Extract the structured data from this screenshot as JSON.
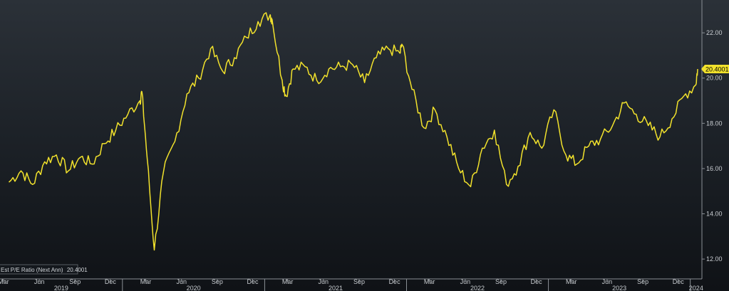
{
  "chart_data": {
    "type": "line",
    "title": "",
    "xlabel": "",
    "ylabel": "",
    "ylim": [
      11.5,
      23.2
    ],
    "y_ticks": [
      "12.00",
      "14.00",
      "16.00",
      "18.00",
      "20.00",
      "22.00"
    ],
    "y_tick_values": [
      12,
      14,
      16,
      18,
      20,
      22
    ],
    "month_ticks": [
      "Mar",
      "Jun",
      "Sep",
      "Dec",
      "Mar",
      "Jun",
      "Sep",
      "Dec",
      "Mar",
      "Jun",
      "Sep",
      "Dec",
      "Mar",
      "Jun",
      "Sep",
      "Dec",
      "Mar",
      "Jun",
      "Sep",
      "Dec"
    ],
    "year_labels": [
      "2019",
      "2020",
      "2021",
      "2022",
      "2023",
      "2024"
    ],
    "grid": false,
    "legend": "bottom-left",
    "series": [
      {
        "name": "Est P/E Ratio (Next Ann)",
        "last_value_label": "20.4001",
        "color": "#f2e22c",
        "x": [
          "2019-03",
          "2019-04",
          "2019-05",
          "2019-06",
          "2019-07",
          "2019-08",
          "2019-09",
          "2019-10",
          "2019-11",
          "2019-12",
          "2020-01",
          "2020-02",
          "2020-02-20",
          "2020-03-05",
          "2020-03-23",
          "2020-04",
          "2020-05",
          "2020-06",
          "2020-07",
          "2020-08",
          "2020-09",
          "2020-10",
          "2020-11",
          "2020-12",
          "2021-01",
          "2021-01-20",
          "2021-02",
          "2021-02-25",
          "2021-03",
          "2021-04",
          "2021-05",
          "2021-06",
          "2021-07",
          "2021-08",
          "2021-09",
          "2021-10",
          "2021-11",
          "2021-12",
          "2021-12-20",
          "2022-01",
          "2022-02",
          "2022-03",
          "2022-04",
          "2022-05",
          "2022-06",
          "2022-07",
          "2022-08",
          "2022-09",
          "2022-10",
          "2022-11",
          "2022-12",
          "2023-01",
          "2023-02",
          "2023-03",
          "2023-04",
          "2023-05",
          "2023-06",
          "2023-07",
          "2023-08",
          "2023-09",
          "2023-10",
          "2023-11",
          "2023-12",
          "2024-01",
          "2024-01-20"
        ],
        "values": [
          15.4,
          15.9,
          15.3,
          16.3,
          16.6,
          15.9,
          16.5,
          16.2,
          17.1,
          17.7,
          18.4,
          19.0,
          19.4,
          16.4,
          12.4,
          15.8,
          17.2,
          19.3,
          20.0,
          21.3,
          20.3,
          20.9,
          21.8,
          22.5,
          22.8,
          22.6,
          19.9,
          19.2,
          20.4,
          20.5,
          19.9,
          20.4,
          20.5,
          20.6,
          19.8,
          20.9,
          21.3,
          21.1,
          21.5,
          19.5,
          17.8,
          18.6,
          17.4,
          16.0,
          15.2,
          16.9,
          17.7,
          15.3,
          16.1,
          17.6,
          16.9,
          18.6,
          16.6,
          16.2,
          17.0,
          17.3,
          17.9,
          18.9,
          18.4,
          17.9,
          17.4,
          18.2,
          19.2,
          19.7,
          20.4
        ]
      }
    ]
  }
}
